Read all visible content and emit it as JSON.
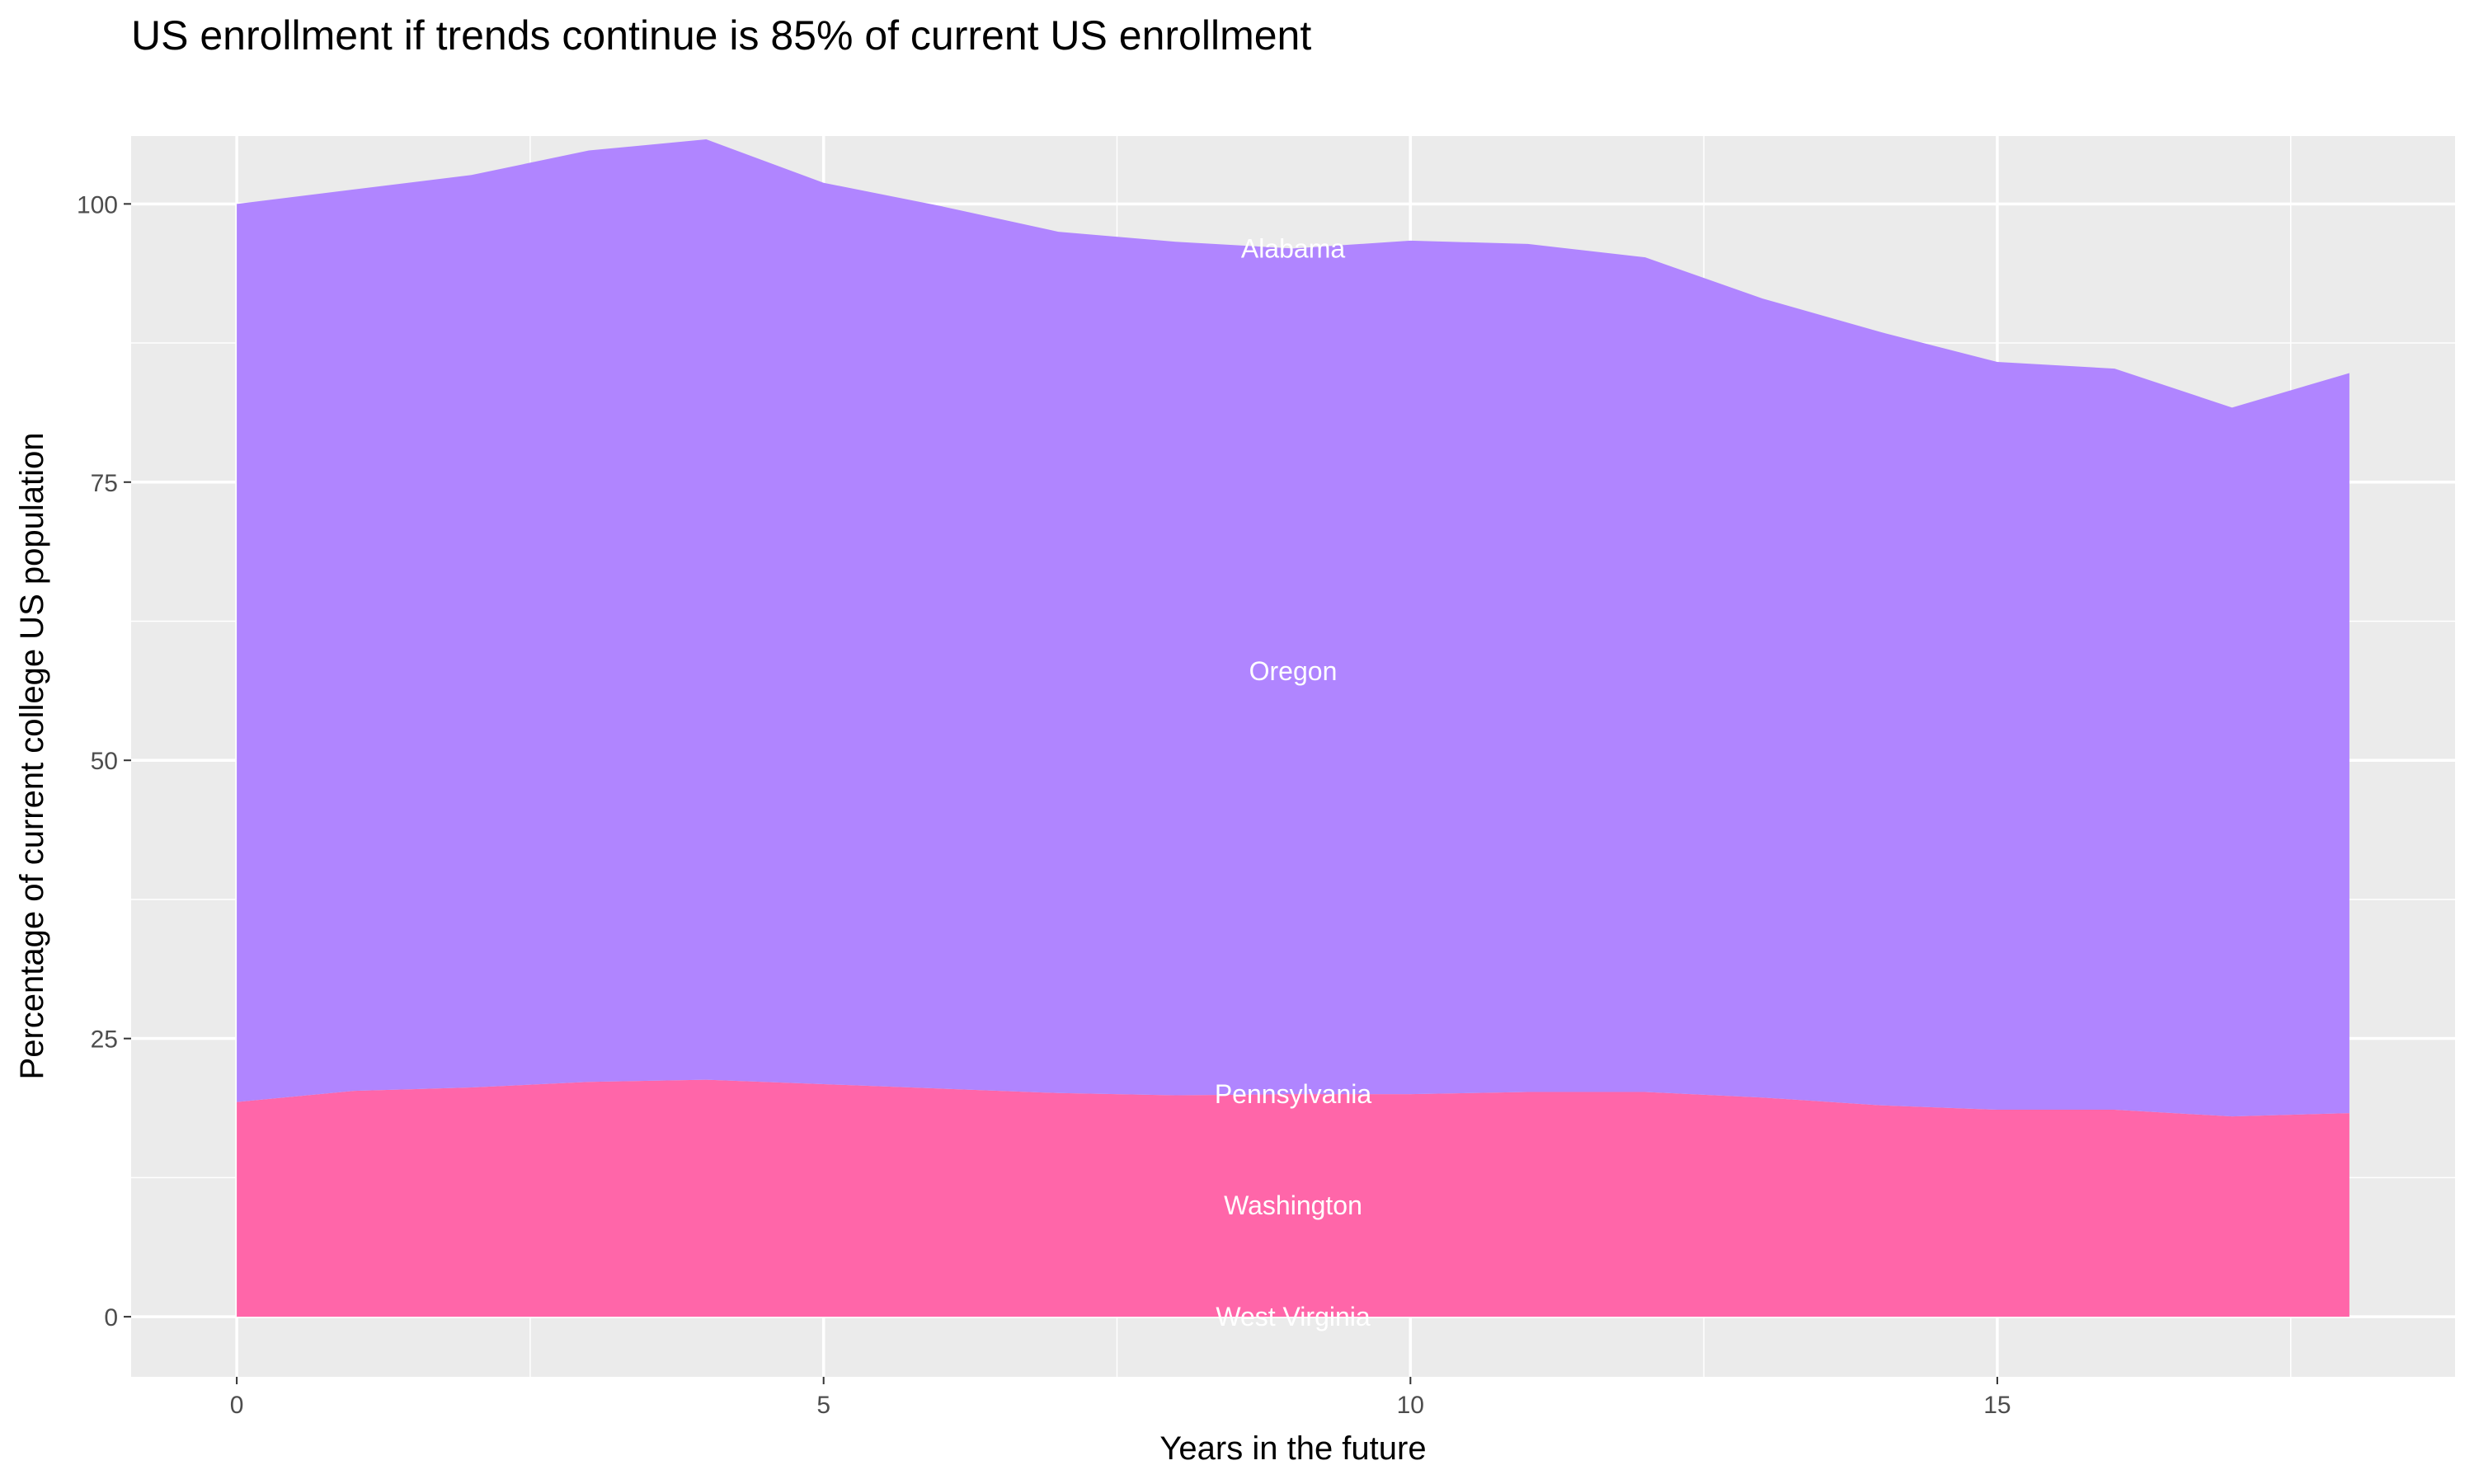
{
  "chart_data": {
    "type": "area",
    "stacked": true,
    "title": "US enrollment if trends continue is 85% of current US enrollment",
    "xlabel": "Years in the future",
    "ylabel": "Percentage of current college US population",
    "x": [
      0,
      1,
      2,
      3,
      4,
      5,
      6,
      7,
      8,
      9,
      10,
      11,
      12,
      13,
      14,
      15,
      16,
      17,
      18
    ],
    "xlim": [
      -0.9,
      18.9
    ],
    "ylim": [
      -5.4,
      106.1
    ],
    "xticks": [
      0,
      5,
      10,
      15
    ],
    "yticks": [
      0,
      25,
      50,
      75,
      100
    ],
    "grid": true,
    "legend": "none",
    "background": "#EBEBEB",
    "series": [
      {
        "name": "West Virginia",
        "color": "#FF66A9",
        "values": [
          0,
          0,
          0,
          0,
          0,
          0,
          0,
          0,
          0,
          0,
          0,
          0,
          0,
          0,
          0,
          0,
          0,
          0,
          0
        ]
      },
      {
        "name": "Washington",
        "color": "#FF66A9",
        "values": [
          19.3,
          20.3,
          20.6,
          21.1,
          21.3,
          20.9,
          20.5,
          20.1,
          19.9,
          20.0,
          20.0,
          20.2,
          20.2,
          19.7,
          19.0,
          18.6,
          18.6,
          18.0,
          18.3
        ]
      },
      {
        "name": "Pennsylvania",
        "color": "#FF66A9",
        "values": [
          0,
          0,
          0,
          0,
          0,
          0,
          0,
          0,
          0,
          0,
          0,
          0,
          0,
          0,
          0,
          0,
          0,
          0,
          0
        ]
      },
      {
        "name": "Oregon",
        "color": "#B085FF",
        "values": [
          80.7,
          81.0,
          82.0,
          83.7,
          84.5,
          81.0,
          79.3,
          77.4,
          76.7,
          76.0,
          76.7,
          76.2,
          75.0,
          71.8,
          69.5,
          67.2,
          66.6,
          63.7,
          66.5
        ]
      },
      {
        "name": "Alabama",
        "color": "#B085FF",
        "values": [
          0,
          0,
          0,
          0,
          0,
          0,
          0,
          0,
          0,
          0,
          0,
          0,
          0,
          0,
          0,
          0,
          0,
          0,
          0
        ]
      }
    ],
    "label_x": 9
  }
}
